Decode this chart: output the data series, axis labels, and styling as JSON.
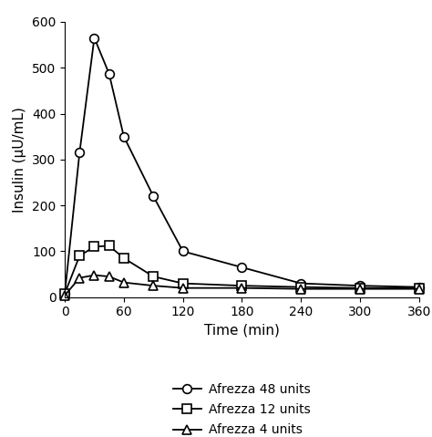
{
  "title": "",
  "xlabel": "Time (min)",
  "ylabel": "Insulin (μU/mL)",
  "xlim": [
    0,
    360
  ],
  "ylim": [
    0,
    600
  ],
  "xticks": [
    0,
    60,
    120,
    180,
    240,
    300,
    360
  ],
  "yticks": [
    0,
    100,
    200,
    300,
    400,
    500,
    600
  ],
  "series": [
    {
      "label": "Afrezza 48 units",
      "marker": "o",
      "color": "#000000",
      "x": [
        0,
        15,
        30,
        45,
        60,
        90,
        120,
        180,
        240,
        300,
        360
      ],
      "y": [
        8,
        315,
        565,
        487,
        350,
        220,
        100,
        65,
        30,
        25,
        22
      ]
    },
    {
      "label": "Afrezza 12 units",
      "marker": "s",
      "color": "#000000",
      "x": [
        0,
        15,
        30,
        45,
        60,
        90,
        120,
        180,
        240,
        300,
        360
      ],
      "y": [
        8,
        90,
        110,
        112,
        85,
        45,
        30,
        25,
        22,
        20,
        20
      ]
    },
    {
      "label": "Afrezza 4 units",
      "marker": "^",
      "color": "#000000",
      "x": [
        0,
        15,
        30,
        45,
        60,
        90,
        120,
        180,
        240,
        300,
        360
      ],
      "y": [
        4,
        42,
        48,
        45,
        32,
        25,
        20,
        20,
        18,
        18,
        18
      ]
    }
  ],
  "background_color": "#ffffff",
  "markersize": 7,
  "linewidth": 1.3,
  "tick_fontsize": 10,
  "label_fontsize": 11,
  "legend_fontsize": 10
}
